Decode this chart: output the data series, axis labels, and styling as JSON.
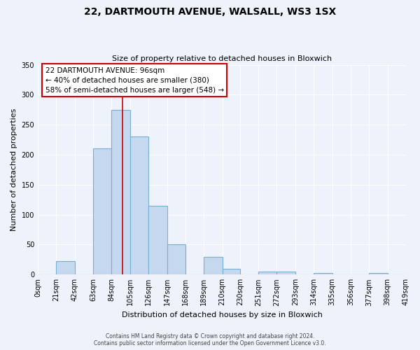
{
  "title": "22, DARTMOUTH AVENUE, WALSALL, WS3 1SX",
  "subtitle": "Size of property relative to detached houses in Bloxwich",
  "xlabel": "Distribution of detached houses by size in Bloxwich",
  "ylabel": "Number of detached properties",
  "bar_values": [
    0,
    22,
    0,
    210,
    275,
    230,
    115,
    50,
    0,
    30,
    10,
    0,
    5,
    5,
    0,
    3,
    0,
    0,
    3,
    0
  ],
  "bar_labels": [
    "0sqm",
    "21sqm",
    "42sqm",
    "63sqm",
    "84sqm",
    "105sqm",
    "126sqm",
    "147sqm",
    "168sqm",
    "189sqm",
    "210sqm",
    "230sqm",
    "251sqm",
    "272sqm",
    "293sqm",
    "314sqm",
    "335sqm",
    "356sqm",
    "377sqm",
    "398sqm",
    "419sqm"
  ],
  "bar_color": "#c5d8f0",
  "bar_edge_color": "#7aafd4",
  "vline_x": 96,
  "vline_color": "#cc0000",
  "annotation_title": "22 DARTMOUTH AVENUE: 96sqm",
  "annotation_line1": "← 40% of detached houses are smaller (380)",
  "annotation_line2": "58% of semi-detached houses are larger (548) →",
  "annotation_box_color": "#ffffff",
  "annotation_box_edge": "#cc0000",
  "ylim": [
    0,
    350
  ],
  "yticks": [
    0,
    50,
    100,
    150,
    200,
    250,
    300,
    350
  ],
  "bin_edges": [
    0,
    21,
    42,
    63,
    84,
    105,
    126,
    147,
    168,
    189,
    210,
    230,
    251,
    272,
    293,
    314,
    335,
    356,
    377,
    398,
    419
  ],
  "footer_line1": "Contains HM Land Registry data © Crown copyright and database right 2024.",
  "footer_line2": "Contains public sector information licensed under the Open Government Licence v3.0.",
  "background_color": "#eef2fb",
  "grid_color": "#ffffff",
  "tick_label_fontsize": 7,
  "ylabel_fontsize": 8,
  "xlabel_fontsize": 8,
  "title_fontsize": 10,
  "subtitle_fontsize": 8,
  "footer_fontsize": 5.5
}
